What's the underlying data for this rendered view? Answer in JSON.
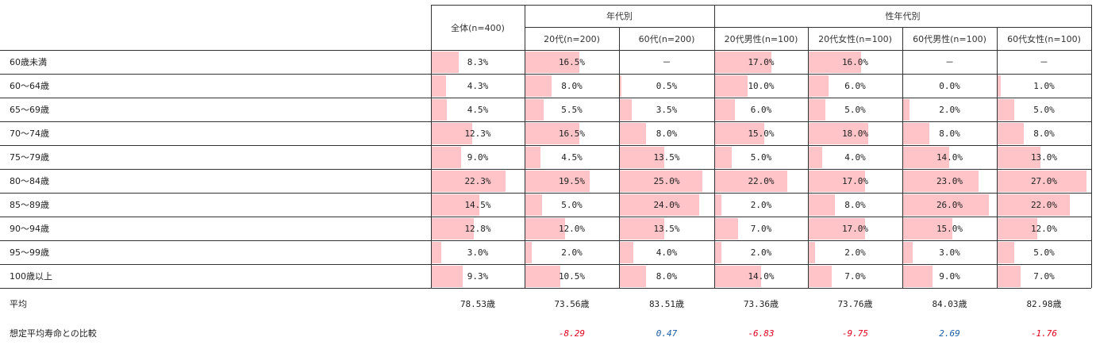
{
  "chart_data": {
    "type": "table",
    "header": {
      "total": "全体(n=400)",
      "group_age": "年代別",
      "group_sex_age": "性年代別"
    },
    "columns": [
      "全体(n=400)",
      "20代(n=200)",
      "60代(n=200)",
      "20代男性(n=100)",
      "20代女性(n=100)",
      "60代男性(n=100)",
      "60代女性(n=100)"
    ],
    "rows": [
      {
        "label": "60歳未満",
        "values": [
          8.3,
          16.5,
          null,
          17.0,
          16.0,
          null,
          null
        ],
        "display": [
          "8.3%",
          "16.5%",
          "－",
          "17.0%",
          "16.0%",
          "－",
          "－"
        ]
      },
      {
        "label": "60～64歳",
        "values": [
          4.3,
          8.0,
          0.5,
          10.0,
          6.0,
          0.0,
          1.0
        ],
        "display": [
          "4.3%",
          "8.0%",
          "0.5%",
          "10.0%",
          "6.0%",
          "0.0%",
          "1.0%"
        ]
      },
      {
        "label": "65～69歳",
        "values": [
          4.5,
          5.5,
          3.5,
          6.0,
          5.0,
          2.0,
          5.0
        ],
        "display": [
          "4.5%",
          "5.5%",
          "3.5%",
          "6.0%",
          "5.0%",
          "2.0%",
          "5.0%"
        ]
      },
      {
        "label": "70～74歳",
        "values": [
          12.3,
          16.5,
          8.0,
          15.0,
          18.0,
          8.0,
          8.0
        ],
        "display": [
          "12.3%",
          "16.5%",
          "8.0%",
          "15.0%",
          "18.0%",
          "8.0%",
          "8.0%"
        ]
      },
      {
        "label": "75～79歳",
        "values": [
          9.0,
          4.5,
          13.5,
          5.0,
          4.0,
          14.0,
          13.0
        ],
        "display": [
          "9.0%",
          "4.5%",
          "13.5%",
          "5.0%",
          "4.0%",
          "14.0%",
          "13.0%"
        ]
      },
      {
        "label": "80～84歳",
        "values": [
          22.3,
          19.5,
          25.0,
          22.0,
          17.0,
          23.0,
          27.0
        ],
        "display": [
          "22.3%",
          "19.5%",
          "25.0%",
          "22.0%",
          "17.0%",
          "23.0%",
          "27.0%"
        ]
      },
      {
        "label": "85～89歳",
        "values": [
          14.5,
          5.0,
          24.0,
          2.0,
          8.0,
          26.0,
          22.0
        ],
        "display": [
          "14.5%",
          "5.0%",
          "24.0%",
          "2.0%",
          "8.0%",
          "26.0%",
          "22.0%"
        ]
      },
      {
        "label": "90～94歳",
        "values": [
          12.8,
          12.0,
          13.5,
          7.0,
          17.0,
          15.0,
          12.0
        ],
        "display": [
          "12.8%",
          "12.0%",
          "13.5%",
          "7.0%",
          "17.0%",
          "15.0%",
          "12.0%"
        ]
      },
      {
        "label": "95～99歳",
        "values": [
          3.0,
          2.0,
          4.0,
          2.0,
          2.0,
          3.0,
          5.0
        ],
        "display": [
          "3.0%",
          "2.0%",
          "4.0%",
          "2.0%",
          "2.0%",
          "3.0%",
          "5.0%"
        ]
      },
      {
        "label": "100歳以上",
        "values": [
          9.3,
          10.5,
          8.0,
          14.0,
          7.0,
          9.0,
          7.0
        ],
        "display": [
          "9.3%",
          "10.5%",
          "8.0%",
          "14.0%",
          "7.0%",
          "9.0%",
          "7.0%"
        ]
      }
    ],
    "bar_max": 27.0,
    "average": {
      "label": "平均",
      "values": [
        "78.53歳",
        "73.56歳",
        "83.51歳",
        "73.36歳",
        "73.76歳",
        "84.03歳",
        "82.98歳"
      ]
    },
    "comparison": {
      "label": "想定平均寿命との比較",
      "values": [
        null,
        -8.29,
        0.47,
        -6.83,
        -9.75,
        2.69,
        -1.76
      ],
      "display": [
        "",
        "-8.29",
        "0.47",
        "-6.83",
        "-9.75",
        "2.69",
        "-1.76"
      ]
    },
    "colors": {
      "bar": "#ffc4c8",
      "negative": "#e0001b",
      "positive": "#1a5ea8",
      "line": "#333333"
    }
  }
}
